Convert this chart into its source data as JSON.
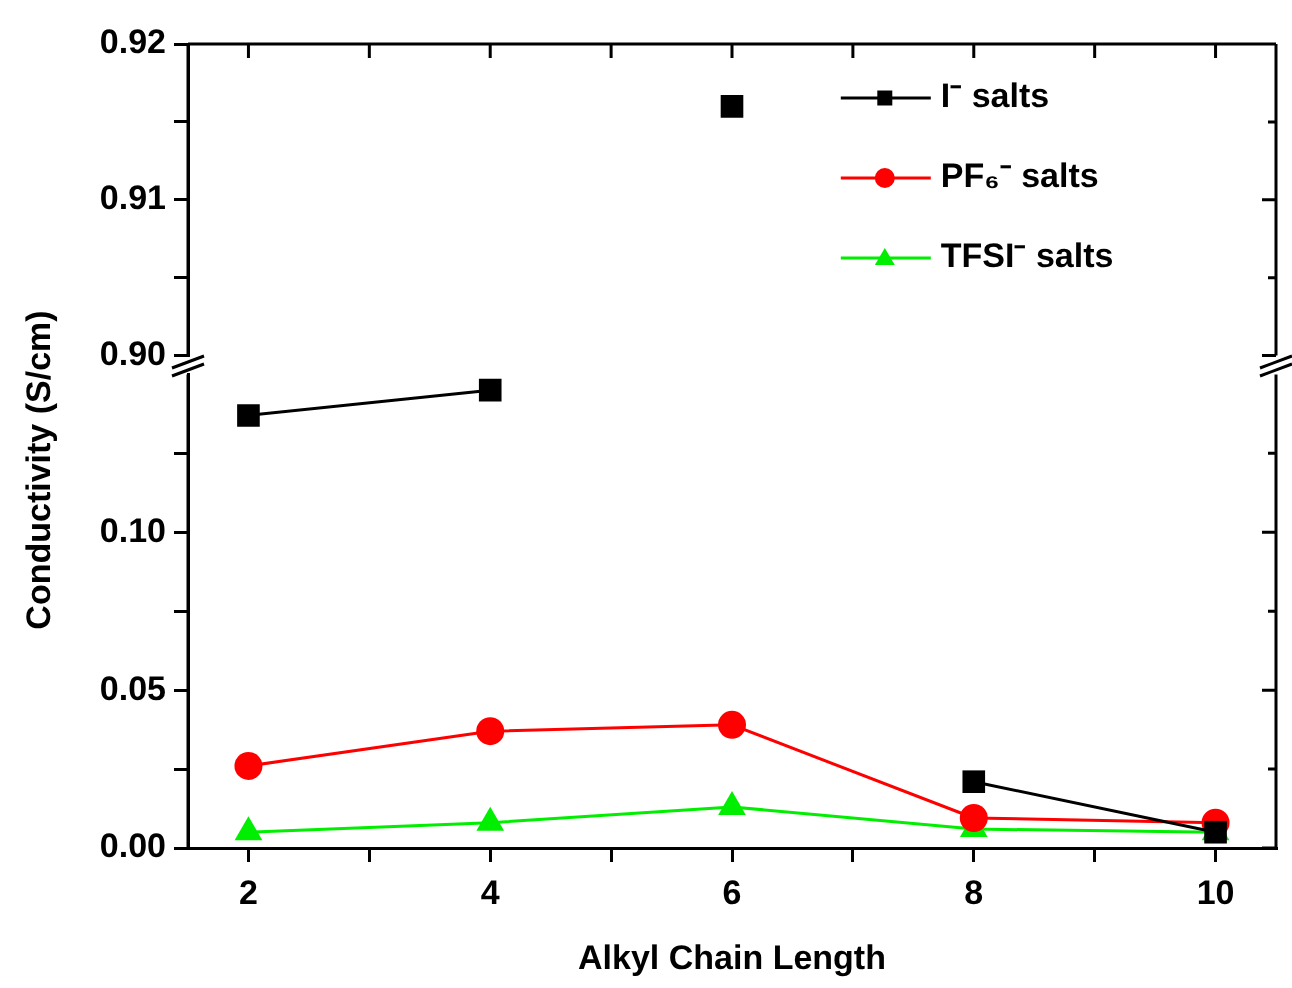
{
  "chart_data": [
    {
      "type": "line",
      "xlim": [
        1.5,
        10.5
      ],
      "xticks": [
        {
          "value": 2,
          "label": null
        },
        {
          "value": 3,
          "label": null
        },
        {
          "value": 4,
          "label": null
        },
        {
          "value": 5,
          "label": null
        },
        {
          "value": 6,
          "label": null
        },
        {
          "value": 7,
          "label": null
        },
        {
          "value": 8,
          "label": null
        },
        {
          "value": 9,
          "label": null
        },
        {
          "value": 10,
          "label": null
        }
      ],
      "ylim": [
        0.9,
        0.92
      ],
      "yticks": [
        {
          "value": 0.9,
          "label": "0.90"
        },
        {
          "value": 0.905,
          "label": null
        },
        {
          "value": 0.91,
          "label": "0.91"
        },
        {
          "value": 0.915,
          "label": null
        },
        {
          "value": 0.92,
          "label": "0.92"
        }
      ],
      "tick_labels": "y",
      "grid": false,
      "legend": "top right",
      "line_style": "solid",
      "series": [
        {
          "name": "I⁻ salts",
          "color": "#000000",
          "marker": "square",
          "x": [
            6
          ],
          "values": [
            0.916
          ]
        },
        {
          "name": "PF₆⁻ salts",
          "color": "#ff0000",
          "marker": "circle"
        },
        {
          "name": "TFSI⁻ salts",
          "color": "#00ee00",
          "marker": "triangle"
        }
      ]
    },
    {
      "type": "line",
      "xlabel": "Alkyl Chain Length",
      "ylabel": "Conductivity (S/cm)",
      "x": [
        2,
        4,
        6,
        8,
        10
      ],
      "xlim": [
        1.5,
        10.5
      ],
      "xticks": [
        {
          "value": 2,
          "label": "2"
        },
        {
          "value": 3,
          "label": null
        },
        {
          "value": 4,
          "label": "4"
        },
        {
          "value": 5,
          "label": null
        },
        {
          "value": 6,
          "label": "6"
        },
        {
          "value": 7,
          "label": null
        },
        {
          "value": 8,
          "label": "8"
        },
        {
          "value": 9,
          "label": null
        },
        {
          "value": 10,
          "label": "10"
        }
      ],
      "ylim": [
        0,
        0.15
      ],
      "yticks": [
        {
          "value": 0,
          "label": "0.00"
        },
        {
          "value": 0.025,
          "label": null
        },
        {
          "value": 0.05,
          "label": "0.05"
        },
        {
          "value": 0.075,
          "label": null
        },
        {
          "value": 0.1,
          "label": "0.10"
        },
        {
          "value": 0.125,
          "label": null
        }
      ],
      "grid": false,
      "line_style": "solid",
      "series": [
        {
          "color": "#000000",
          "marker": "square",
          "values": [
            0.137,
            0.145,
            null,
            0.021,
            0.005
          ]
        },
        {
          "color": "#ff0000",
          "marker": "circle",
          "values": [
            0.026,
            0.037,
            0.039,
            0.0095,
            0.008
          ]
        },
        {
          "color": "#00ee00",
          "marker": "triangle",
          "values": [
            0.005,
            0.008,
            0.013,
            0.006,
            0.005
          ]
        }
      ]
    }
  ]
}
